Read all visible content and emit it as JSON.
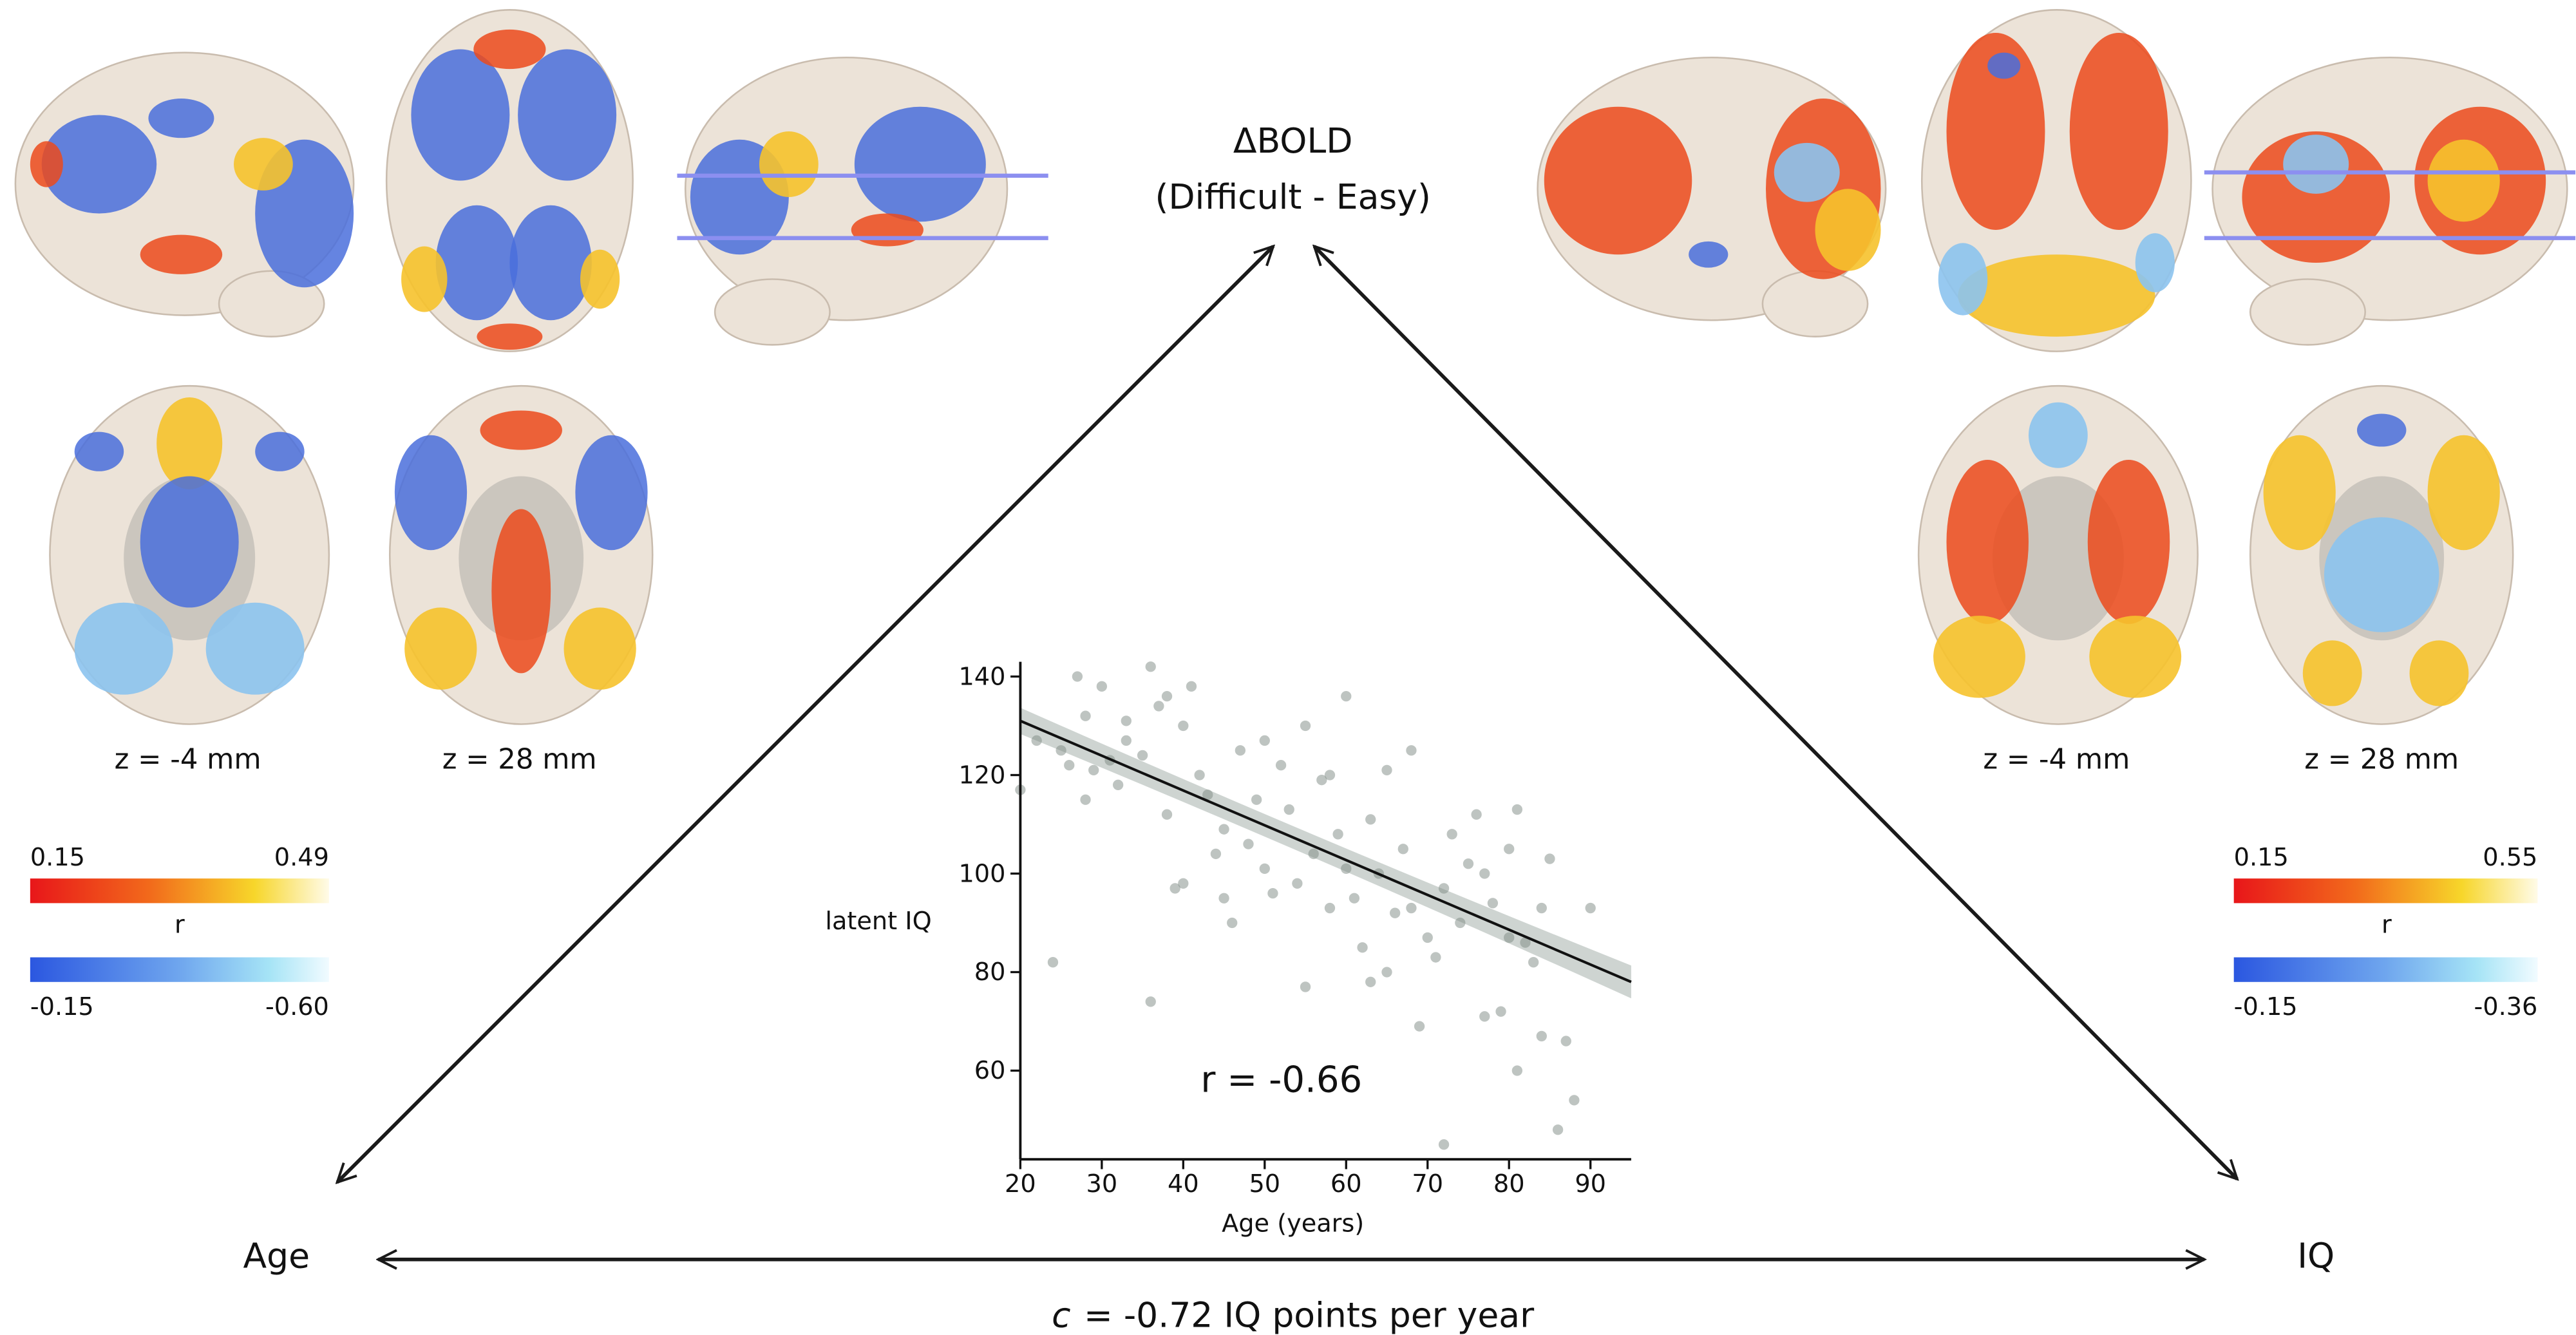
{
  "chart_data": {
    "type": "scatter",
    "x_label": "Age (years)",
    "y_label": "latent IQ",
    "annotation": "r = -0.66",
    "x": [
      20,
      22,
      24,
      25,
      26,
      27,
      28,
      28,
      30,
      31,
      32,
      33,
      35,
      36,
      36,
      37,
      38,
      38,
      39,
      40,
      40,
      41,
      42,
      43,
      44,
      45,
      46,
      47,
      48,
      49,
      50,
      50,
      51,
      52,
      53,
      54,
      55,
      55,
      56,
      57,
      58,
      58,
      59,
      60,
      60,
      61,
      62,
      63,
      64,
      65,
      65,
      66,
      67,
      68,
      68,
      69,
      70,
      71,
      72,
      72,
      73,
      74,
      75,
      76,
      77,
      78,
      79,
      80,
      80,
      81,
      81,
      82,
      83,
      84,
      84,
      85,
      86,
      87,
      88,
      90,
      77,
      63,
      45,
      33,
      29
    ],
    "values": [
      117,
      127,
      82,
      125,
      122,
      140,
      132,
      115,
      138,
      123,
      118,
      127,
      124,
      142,
      74,
      134,
      136,
      112,
      97,
      130,
      98,
      138,
      120,
      116,
      104,
      109,
      90,
      125,
      106,
      115,
      127,
      101,
      96,
      122,
      113,
      98,
      77,
      130,
      104,
      119,
      93,
      120,
      108,
      101,
      136,
      95,
      85,
      111,
      100,
      121,
      80,
      92,
      105,
      93,
      125,
      69,
      87,
      83,
      45,
      97,
      108,
      90,
      102,
      112,
      100,
      94,
      72,
      87,
      105,
      60,
      113,
      86,
      82,
      93,
      67,
      103,
      48,
      66,
      54,
      93,
      71,
      78,
      95,
      131,
      121
    ],
    "color": "#7d8a83",
    "fit": {
      "x": [
        20,
        95
      ],
      "values": [
        131,
        78
      ],
      "color": "#111111",
      "band_color": "#b9c2bd"
    },
    "xlim": [
      20,
      95
    ],
    "xticks": [
      20,
      30,
      40,
      50,
      60,
      70,
      80,
      90
    ],
    "ylim": [
      42,
      143
    ],
    "yticks": [
      60,
      80,
      100,
      120,
      140
    ]
  },
  "diagram": {
    "top_label": "ΔBOLD",
    "top_sublabel": "(Difficult - Easy)",
    "left_label": "Age",
    "right_label": "IQ",
    "bottom_symbol": "c",
    "bottom_label": "= -0.72  IQ points per year"
  },
  "panels": [
    {
      "slice_labels": [
        "z = -4 mm",
        "z = 28 mm"
      ],
      "colorbar": {
        "positive": [
          0.15,
          0.49
        ],
        "negative": [
          -0.15,
          {
            "value": -0.6,
            "label": "-0.60"
          }
        ],
        "label": "r"
      }
    },
    {
      "slice_labels": [
        "z = -4 mm",
        "z = 28 mm"
      ],
      "colorbar": {
        "positive": [
          0.15,
          0.55
        ],
        "negative": [
          -0.15,
          -0.36
        ],
        "label": "r"
      }
    }
  ]
}
